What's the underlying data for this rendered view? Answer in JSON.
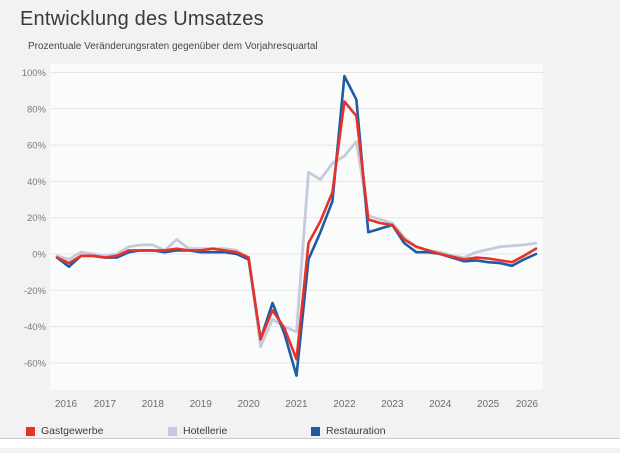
{
  "page": {
    "title": "Entwicklung des Umsatzes",
    "subtitle": "Prozentuale Veränderungsraten gegenüber dem Vorjahresquartal"
  },
  "colors": {
    "background": "#f2f2f3",
    "plot_background": "#fafbfb",
    "grid": "#e6e6ea",
    "y_tick_text": "#797b80",
    "x_tick_text": "#6b6d72",
    "gastgewerbe": "#e63329",
    "hotellerie": "#c5cbde",
    "restauration": "#1d5ca5"
  },
  "chart_data": {
    "type": "line",
    "title": "Entwicklung des Umsatzes",
    "subtitle": "Prozentuale Veränderungsraten gegenüber dem Vorjahresquartal",
    "x_unit": "quarter",
    "grid": true,
    "legend_position": "bottom",
    "ylim": [
      -74,
      104
    ],
    "y_axis": {
      "ticks": [
        100,
        80,
        60,
        40,
        20,
        0,
        -20,
        -40,
        -60
      ],
      "tick_labels": [
        "100%",
        "80%",
        "60%",
        "40%",
        "20%",
        "0%",
        "-20%",
        "-40%",
        "-60%"
      ]
    },
    "x_axis": {
      "tick_labels": [
        "2016",
        "2017",
        "2018",
        "2019",
        "2020",
        "2021",
        "2022",
        "2023",
        "2024",
        "2025",
        "2026"
      ]
    },
    "x": [
      "2016-Q1",
      "2016-Q2",
      "2016-Q3",
      "2016-Q4",
      "2017-Q1",
      "2017-Q2",
      "2017-Q3",
      "2017-Q4",
      "2018-Q1",
      "2018-Q2",
      "2018-Q3",
      "2018-Q4",
      "2019-Q1",
      "2019-Q2",
      "2019-Q3",
      "2019-Q4",
      "2020-Q1",
      "2020-Q2",
      "2020-Q3",
      "2020-Q4",
      "2021-Q1",
      "2021-Q2",
      "2021-Q3",
      "2021-Q4",
      "2022-Q1",
      "2022-Q2",
      "2022-Q3",
      "2022-Q4",
      "2023-Q1",
      "2023-Q2",
      "2023-Q3",
      "2023-Q4",
      "2024-Q1",
      "2024-Q2",
      "2024-Q3",
      "2024-Q4",
      "2025-Q1",
      "2025-Q2",
      "2025-Q3",
      "2025-Q4",
      "2026-Q1"
    ],
    "series": [
      {
        "name": "Gastgewerbe",
        "color": "#e63329",
        "values": [
          -2,
          -5,
          -1,
          -1,
          -2,
          -1,
          2,
          2,
          2,
          2,
          3,
          2,
          2,
          3,
          2,
          1,
          -2,
          -47,
          -31,
          -41,
          -58,
          6,
          18,
          34,
          84,
          76,
          19,
          17,
          16,
          8,
          4,
          2,
          0,
          -1.5,
          -3,
          -2,
          -2.5,
          -3.5,
          -4.5,
          -1,
          3
        ]
      },
      {
        "name": "Hotellerie",
        "color": "#c5cbde",
        "values": [
          -1,
          -3,
          1,
          0,
          -1,
          0,
          4,
          5,
          5,
          2,
          8,
          3,
          3,
          3,
          3,
          2,
          -2,
          -51,
          -36,
          -40,
          -43,
          45,
          41,
          50,
          54,
          62,
          21,
          19,
          17,
          9,
          4,
          2,
          1,
          -1,
          -2,
          1,
          2.5,
          4,
          4.5,
          5,
          6
        ]
      },
      {
        "name": "Restauration",
        "color": "#1d5ca5",
        "values": [
          -2,
          -7,
          -1,
          -1,
          -2,
          -2,
          1,
          2,
          2,
          1,
          2,
          2,
          1,
          1,
          1,
          0,
          -3,
          -47,
          -27,
          -44,
          -67,
          -3,
          12,
          29,
          98,
          85,
          12,
          14,
          16,
          6,
          1,
          1,
          0,
          -2,
          -4,
          -3.5,
          -4.5,
          -5,
          -6.5,
          -3,
          0
        ]
      }
    ]
  }
}
